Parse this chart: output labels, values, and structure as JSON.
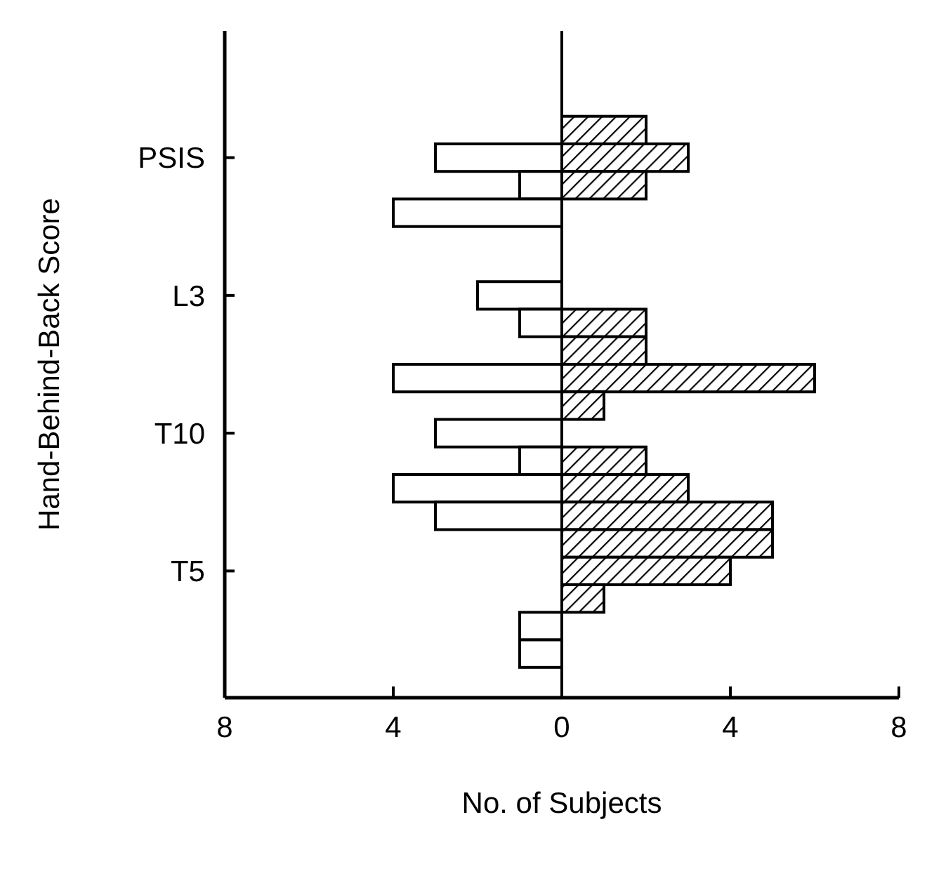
{
  "chart_data": {
    "type": "bar",
    "orientation": "horizontal",
    "xlabel": "No. of Subjects",
    "ylabel": "Hand-Behind-Back Score",
    "categories": [
      null,
      null,
      null,
      null,
      "PSIS",
      null,
      null,
      null,
      null,
      "L3",
      null,
      null,
      null,
      null,
      "T10",
      null,
      null,
      null,
      null,
      "T5",
      null,
      null,
      null,
      null
    ],
    "xlim": [
      -8,
      8
    ],
    "xticks": [
      {
        "value": -8,
        "label": "8"
      },
      {
        "value": -4,
        "label": "4"
      },
      0,
      4,
      8
    ],
    "series": [
      {
        "color": "#ffffff",
        "values": [
          null,
          null,
          null,
          null,
          -3,
          -1,
          -4,
          null,
          null,
          -2,
          -1,
          null,
          -4,
          null,
          -3,
          -1,
          -4,
          -3,
          null,
          null,
          null,
          -1,
          -1,
          null
        ]
      },
      {
        "color": "#000000",
        "values": [
          null,
          null,
          null,
          2,
          3,
          2,
          null,
          null,
          null,
          null,
          2,
          2,
          6,
          1,
          null,
          2,
          3,
          5,
          5,
          4,
          1,
          null,
          null,
          null
        ]
      }
    ],
    "ref_lines": [
      {
        "axis": "x",
        "value": 0
      }
    ]
  }
}
